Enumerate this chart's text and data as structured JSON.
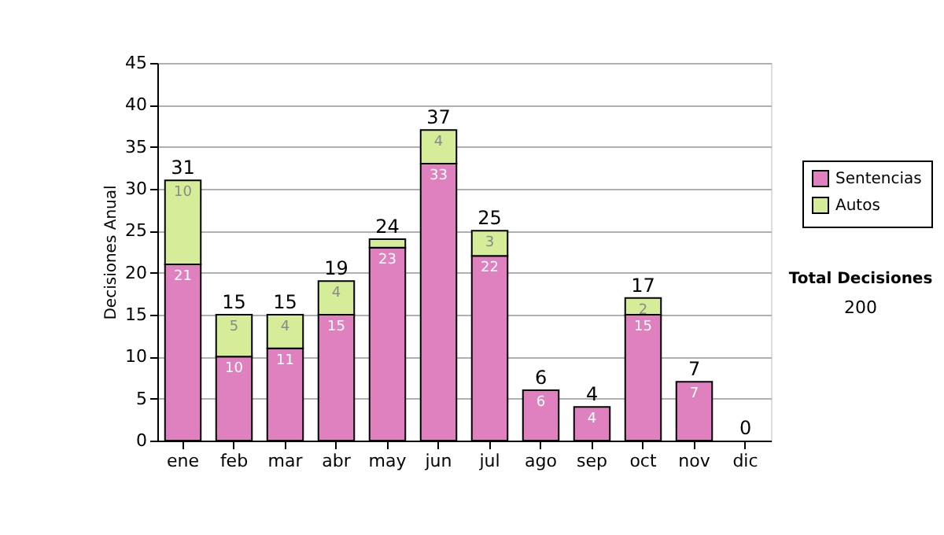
{
  "chart_data": {
    "type": "bar",
    "stacked": true,
    "ylabel": "Decisiones Anual",
    "categories": [
      "ene",
      "feb",
      "mar",
      "abr",
      "may",
      "jun",
      "jul",
      "ago",
      "sep",
      "oct",
      "nov",
      "dic"
    ],
    "series": [
      {
        "name": "Sentencias",
        "color": "#df80bf",
        "values": [
          21,
          10,
          11,
          15,
          23,
          33,
          22,
          6,
          4,
          15,
          7,
          0
        ],
        "value_labels": [
          "21",
          "10",
          "11",
          "15",
          "23",
          "33",
          "22",
          "6",
          "4",
          "15",
          "7",
          null
        ]
      },
      {
        "name": "Autos",
        "color": "#d5ec98",
        "values": [
          10,
          5,
          4,
          4,
          1,
          4,
          3,
          0,
          0,
          2,
          0,
          0
        ],
        "value_labels": [
          "10",
          "5",
          "4",
          "4",
          null,
          "4",
          "3",
          null,
          null,
          "2",
          null,
          null
        ]
      }
    ],
    "totals": [
      "31",
      "15",
      "15",
      "19",
      "24",
      "37",
      "25",
      "6",
      "4",
      "17",
      "7",
      "0"
    ],
    "ylim": [
      0,
      45
    ],
    "yticks": [
      0,
      5,
      10,
      15,
      20,
      25,
      30,
      35,
      40,
      45
    ],
    "grid": "y",
    "legend": "right",
    "annotations": [
      "Total Decisiones",
      "200"
    ]
  }
}
